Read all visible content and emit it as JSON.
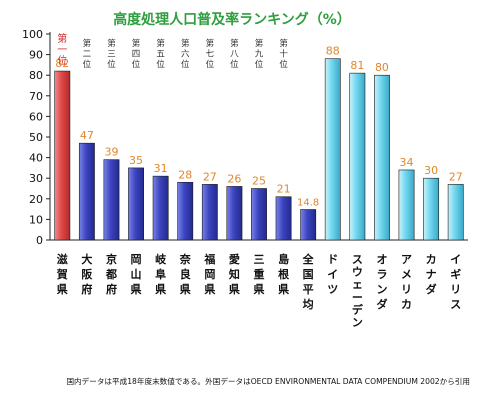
{
  "chart_data": {
    "type": "bar",
    "title": "高度処理人口普及率ランキング（%）",
    "xlabel": "",
    "ylabel": "",
    "ylim": [
      0,
      100
    ],
    "yticks": [
      0,
      10,
      20,
      30,
      40,
      50,
      60,
      70,
      80,
      90,
      100
    ],
    "grid": false,
    "categories": [
      "滋賀県",
      "大阪府",
      "京都府",
      "岡山県",
      "岐阜県",
      "奈良県",
      "福岡県",
      "愛知県",
      "三重県",
      "島根県",
      "全国平均",
      "ドイツ",
      "スウェーデン",
      "オランダ",
      "アメリカ",
      "カナダ",
      "イギリス"
    ],
    "values": [
      82,
      47,
      39,
      35,
      31,
      28,
      27,
      26,
      25,
      21,
      14.8,
      88,
      81,
      80,
      34,
      30,
      27
    ],
    "value_labels": [
      "82",
      "47",
      "39",
      "35",
      "31",
      "28",
      "27",
      "26",
      "25",
      "21",
      "14.8",
      "88",
      "81",
      "80",
      "34",
      "30",
      "27"
    ],
    "rank_labels": [
      "第一位",
      "第二位",
      "第三位",
      "第四位",
      "第五位",
      "第六位",
      "第七位",
      "第八位",
      "第九位",
      "第十位",
      "",
      "",
      "",
      "",
      "",
      "",
      ""
    ],
    "bar_groups": [
      "first",
      "domestic",
      "domestic",
      "domestic",
      "domestic",
      "domestic",
      "domestic",
      "domestic",
      "domestic",
      "domestic",
      "domestic",
      "foreign",
      "foreign",
      "foreign",
      "foreign",
      "foreign",
      "foreign"
    ],
    "colors": {
      "title": "#2e9e3e",
      "value_label": "#e3862b",
      "rank_first": "#d42a2a",
      "rank_other": "#333333",
      "bar_first": "#e05050",
      "bar_domestic": "#3c44c0",
      "bar_foreign": "#6fd6ee",
      "axis": "#222222",
      "text": "#111111"
    },
    "footnote": "国内データは平成18年度末数値である。外国データはOECD ENVIRONMENTAL DATA COMPENDIUM 2002から引用"
  }
}
